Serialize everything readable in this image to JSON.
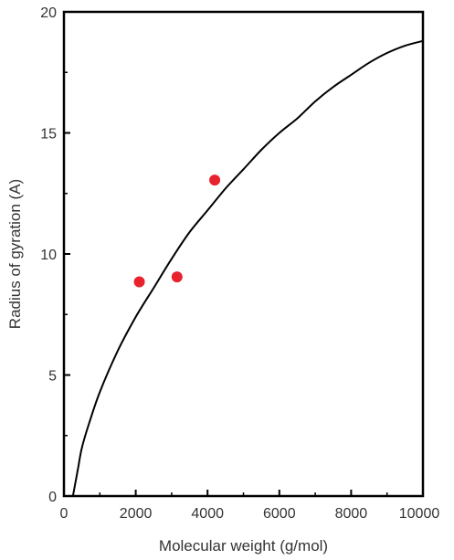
{
  "chart_data": {
    "type": "scatter",
    "xlabel": "Molecular weight (g/mol)",
    "ylabel": "Radius of gyration (A)",
    "xlim": [
      0,
      10000
    ],
    "ylim": [
      0,
      20
    ],
    "x_ticks": [
      0,
      2000,
      4000,
      6000,
      8000,
      10000
    ],
    "y_ticks": [
      0,
      5,
      10,
      15,
      20
    ],
    "x_tick_labels": [
      "0",
      "2000",
      "4000",
      "6000",
      "8000",
      "10000"
    ],
    "y_tick_labels": [
      "0",
      "5",
      "10",
      "15",
      "20"
    ],
    "grid": false,
    "legend": "none",
    "series": [
      {
        "kind": "points",
        "color": "#e8232e",
        "x": [
          2100,
          3150,
          4200
        ],
        "y": [
          8.85,
          9.05,
          13.05
        ]
      },
      {
        "kind": "fit-line",
        "color": "#000000",
        "x": [
          250,
          300,
          400,
          500,
          700,
          1000,
          1500,
          2000,
          2500,
          3000,
          3500,
          4000,
          4500,
          5000,
          5500,
          6000,
          6500,
          7000,
          7500,
          8000,
          8500,
          9000,
          9500,
          10000
        ],
        "y": [
          0.0,
          0.4,
          1.2,
          2.0,
          3.0,
          4.3,
          6.0,
          7.4,
          8.6,
          9.8,
          10.9,
          11.8,
          12.7,
          13.5,
          14.3,
          15.0,
          15.6,
          16.3,
          16.9,
          17.4,
          17.9,
          18.3,
          18.6,
          18.8
        ]
      }
    ]
  }
}
